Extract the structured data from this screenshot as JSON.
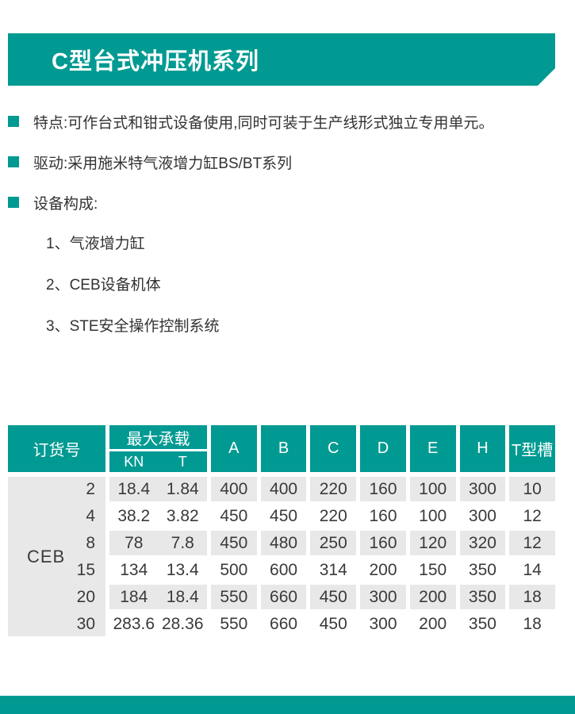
{
  "colors": {
    "accent": "#009a92",
    "stripe": "#e8e8e8",
    "text": "#333333"
  },
  "banner": {
    "title": "C型台式冲压机系列"
  },
  "bullets": [
    {
      "text": "特点:可作台式和钳式设备使用,同时可装于生产线形式独立专用单元。"
    },
    {
      "text": "驱动:采用施米特气液增力缸BS/BT系列"
    },
    {
      "text": "设备构成:"
    }
  ],
  "components": [
    "1、气液增力缸",
    "2、CEB设备机体",
    "3、STE安全操作控制系统"
  ],
  "table": {
    "headers": {
      "order_no": "订货号",
      "max_load": "最大承载",
      "kn": "KN",
      "t": "T",
      "cols": [
        "A",
        "B",
        "C",
        "D",
        "E",
        "H",
        "T型槽"
      ]
    },
    "series_prefix": "CEB",
    "rows": [
      {
        "model": "2",
        "kn": "18.4",
        "t": "1.84",
        "a": "400",
        "b": "400",
        "c": "220",
        "d": "160",
        "e": "100",
        "h": "300",
        "t_slot": "10"
      },
      {
        "model": "4",
        "kn": "38.2",
        "t": "3.82",
        "a": "450",
        "b": "450",
        "c": "220",
        "d": "160",
        "e": "100",
        "h": "300",
        "t_slot": "12"
      },
      {
        "model": "8",
        "kn": "78",
        "t": "7.8",
        "a": "450",
        "b": "480",
        "c": "250",
        "d": "160",
        "e": "120",
        "h": "320",
        "t_slot": "12"
      },
      {
        "model": "15",
        "kn": "134",
        "t": "13.4",
        "a": "500",
        "b": "600",
        "c": "314",
        "d": "200",
        "e": "150",
        "h": "350",
        "t_slot": "14"
      },
      {
        "model": "20",
        "kn": "184",
        "t": "18.4",
        "a": "550",
        "b": "660",
        "c": "450",
        "d": "300",
        "e": "200",
        "h": "350",
        "t_slot": "18"
      },
      {
        "model": "30",
        "kn": "283.6",
        "t": "28.36",
        "a": "550",
        "b": "660",
        "c": "450",
        "d": "300",
        "e": "200",
        "h": "350",
        "t_slot": "18"
      }
    ]
  }
}
